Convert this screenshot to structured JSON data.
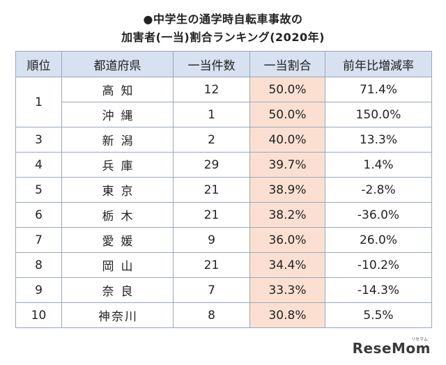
{
  "title_line1": "●中学生の通学時自転車事故の",
  "title_line2": "加害者(一当)割合ランキング(2020年)",
  "columns": [
    "順位",
    "都道府県",
    "一当件数",
    "一当割合",
    "前年比増減率"
  ],
  "rows": [
    {
      "rank": "1",
      "pref": "高知",
      "count": "12",
      "ratio": "50.0%",
      "change": "71.4%"
    },
    {
      "rank": "",
      "pref": "沖縄",
      "count": "1",
      "ratio": "50.0%",
      "change": "150.0%"
    },
    {
      "rank": "3",
      "pref": "新潟",
      "count": "2",
      "ratio": "40.0%",
      "change": "13.3%"
    },
    {
      "rank": "4",
      "pref": "兵庫",
      "count": "29",
      "ratio": "39.7%",
      "change": "1.4%"
    },
    {
      "rank": "5",
      "pref": "東京",
      "count": "21",
      "ratio": "38.9%",
      "change": "-2.8%"
    },
    {
      "rank": "6",
      "pref": "栃木",
      "count": "21",
      "ratio": "38.2%",
      "change": "-36.0%"
    },
    {
      "rank": "7",
      "pref": "愛媛",
      "count": "9",
      "ratio": "36.0%",
      "change": "26.0%"
    },
    {
      "rank": "8",
      "pref": "岡山",
      "count": "21",
      "ratio": "34.4%",
      "change": "-10.2%"
    },
    {
      "rank": "9",
      "pref": "奈良",
      "count": "7",
      "ratio": "33.3%",
      "change": "-14.3%"
    },
    {
      "rank": "10",
      "pref": "神奈川",
      "count": "8",
      "ratio": "30.8%",
      "change": "5.5%"
    }
  ],
  "brand": "ReseMom",
  "brand_small": "リセマム"
}
